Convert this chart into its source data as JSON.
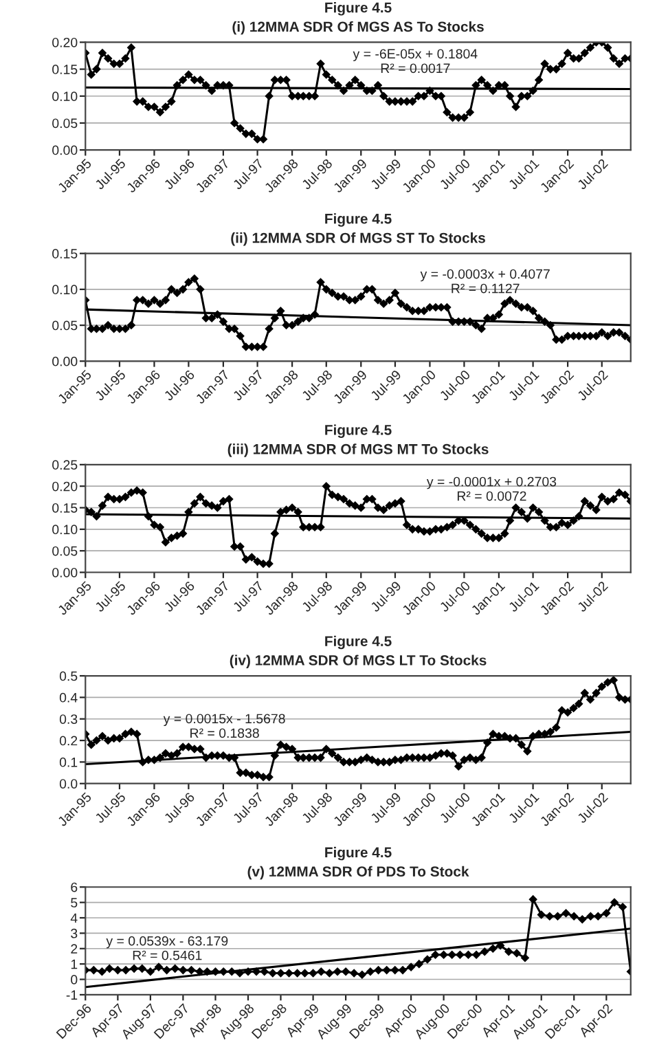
{
  "chart_data": [
    {
      "type": "line",
      "title": "Figure 4.5",
      "subtitle": "(i) 12MMA SDR Of MGS AS To Stocks",
      "marker": "diamond",
      "grid": "y",
      "x": [
        "1995-01",
        "1995-02",
        "1995-03",
        "1995-04",
        "1995-05",
        "1995-06",
        "1995-07",
        "1995-08",
        "1995-09",
        "1995-10",
        "1995-11",
        "1995-12",
        "1996-01",
        "1996-02",
        "1996-03",
        "1996-04",
        "1996-05",
        "1996-06",
        "1996-07",
        "1996-08",
        "1996-09",
        "1996-10",
        "1996-11",
        "1996-12",
        "1997-01",
        "1997-02",
        "1997-03",
        "1997-04",
        "1997-05",
        "1997-06",
        "1997-07",
        "1997-08",
        "1997-09",
        "1997-10",
        "1997-11",
        "1997-12",
        "1998-01",
        "1998-02",
        "1998-03",
        "1998-04",
        "1998-05",
        "1998-06",
        "1998-07",
        "1998-08",
        "1998-09",
        "1998-10",
        "1998-11",
        "1998-12",
        "1999-01",
        "1999-02",
        "1999-03",
        "1999-04",
        "1999-05",
        "1999-06",
        "1999-07",
        "1999-08",
        "1999-09",
        "1999-10",
        "1999-11",
        "1999-12",
        "2000-01",
        "2000-02",
        "2000-03",
        "2000-04",
        "2000-05",
        "2000-06",
        "2000-07",
        "2000-08",
        "2000-09",
        "2000-10",
        "2000-11",
        "2000-12",
        "2001-01",
        "2001-02",
        "2001-03",
        "2001-04",
        "2001-05",
        "2001-06",
        "2001-07",
        "2001-08",
        "2001-09",
        "2001-10",
        "2001-11",
        "2001-12",
        "2002-01",
        "2002-02",
        "2002-03",
        "2002-04",
        "2002-05",
        "2002-06",
        "2002-07",
        "2002-08",
        "2002-09",
        "2002-10",
        "2002-11",
        "2002-12"
      ],
      "series": [
        {
          "color": "#000000",
          "values": [
            0.18,
            0.14,
            0.15,
            0.18,
            0.17,
            0.16,
            0.16,
            0.17,
            0.19,
            0.09,
            0.09,
            0.08,
            0.08,
            0.07,
            0.08,
            0.09,
            0.12,
            0.13,
            0.14,
            0.13,
            0.13,
            0.12,
            0.11,
            0.12,
            0.12,
            0.12,
            0.05,
            0.04,
            0.03,
            0.03,
            0.02,
            0.02,
            0.1,
            0.13,
            0.13,
            0.13,
            0.1,
            0.1,
            0.1,
            0.1,
            0.1,
            0.16,
            0.14,
            0.13,
            0.12,
            0.11,
            0.12,
            0.13,
            0.12,
            0.11,
            0.11,
            0.12,
            0.1,
            0.09,
            0.09,
            0.09,
            0.09,
            0.09,
            0.1,
            0.1,
            0.11,
            0.1,
            0.1,
            0.07,
            0.06,
            0.06,
            0.06,
            0.07,
            0.12,
            0.13,
            0.12,
            0.11,
            0.12,
            0.12,
            0.1,
            0.08,
            0.1,
            0.1,
            0.11,
            0.13,
            0.16,
            0.15,
            0.15,
            0.16,
            0.18,
            0.17,
            0.17,
            0.18,
            0.19,
            0.2,
            0.2,
            0.19,
            0.17,
            0.16,
            0.17,
            0.17
          ]
        },
        {
          "type": "line",
          "marker": "none",
          "color": "#000000",
          "x": [
            "1995-01",
            "2002-12"
          ],
          "values": [
            0.116,
            0.113
          ]
        }
      ],
      "xlim": [
        "1995-01",
        "2002-12"
      ],
      "ylim": [
        0,
        0.2
      ],
      "xticks": [
        {
          "value": "1995-01",
          "label": "Jan-95"
        },
        {
          "value": "1995-07",
          "label": "Jul-95"
        },
        {
          "value": "1996-01",
          "label": "Jan-96"
        },
        {
          "value": "1996-07",
          "label": "Jul-96"
        },
        {
          "value": "1997-01",
          "label": "Jan-97"
        },
        {
          "value": "1997-07",
          "label": "Jul-97"
        },
        {
          "value": "1998-01",
          "label": "Jan-98"
        },
        {
          "value": "1998-07",
          "label": "Jul-98"
        },
        {
          "value": "1999-01",
          "label": "Jan-99"
        },
        {
          "value": "1999-07",
          "label": "Jul-99"
        },
        {
          "value": "2000-01",
          "label": "Jan-00"
        },
        {
          "value": "2000-07",
          "label": "Jul-00"
        },
        {
          "value": "2001-01",
          "label": "Jan-01"
        },
        {
          "value": "2001-07",
          "label": "Jul-01"
        },
        {
          "value": "2002-01",
          "label": "Jan-02"
        },
        {
          "value": "2002-07",
          "label": "Jul-02"
        }
      ],
      "yticks": [
        {
          "value": 0,
          "label": "0.00"
        },
        {
          "value": 0.05,
          "label": "0.05"
        },
        {
          "value": 0.1,
          "label": "0.10"
        },
        {
          "value": 0.15,
          "label": "0.15"
        },
        {
          "value": 0.2,
          "label": "0.20"
        }
      ],
      "annotations": [
        "y = -6E-05x + 0.1804",
        "R² = 0.0017"
      ]
    },
    {
      "type": "line",
      "title": "Figure 4.5",
      "subtitle": "(ii) 12MMA SDR Of MGS ST To Stocks",
      "marker": "diamond",
      "grid": "y",
      "x": [
        "1995-01",
        "1995-02",
        "1995-03",
        "1995-04",
        "1995-05",
        "1995-06",
        "1995-07",
        "1995-08",
        "1995-09",
        "1995-10",
        "1995-11",
        "1995-12",
        "1996-01",
        "1996-02",
        "1996-03",
        "1996-04",
        "1996-05",
        "1996-06",
        "1996-07",
        "1996-08",
        "1996-09",
        "1996-10",
        "1996-11",
        "1996-12",
        "1997-01",
        "1997-02",
        "1997-03",
        "1997-04",
        "1997-05",
        "1997-06",
        "1997-07",
        "1997-08",
        "1997-09",
        "1997-10",
        "1997-11",
        "1997-12",
        "1998-01",
        "1998-02",
        "1998-03",
        "1998-04",
        "1998-05",
        "1998-06",
        "1998-07",
        "1998-08",
        "1998-09",
        "1998-10",
        "1998-11",
        "1998-12",
        "1999-01",
        "1999-02",
        "1999-03",
        "1999-04",
        "1999-05",
        "1999-06",
        "1999-07",
        "1999-08",
        "1999-09",
        "1999-10",
        "1999-11",
        "1999-12",
        "2000-01",
        "2000-02",
        "2000-03",
        "2000-04",
        "2000-05",
        "2000-06",
        "2000-07",
        "2000-08",
        "2000-09",
        "2000-10",
        "2000-11",
        "2000-12",
        "2001-01",
        "2001-02",
        "2001-03",
        "2001-04",
        "2001-05",
        "2001-06",
        "2001-07",
        "2001-08",
        "2001-09",
        "2001-10",
        "2001-11",
        "2001-12",
        "2002-01",
        "2002-02",
        "2002-03",
        "2002-04",
        "2002-05",
        "2002-06",
        "2002-07",
        "2002-08",
        "2002-09",
        "2002-10",
        "2002-11",
        "2002-12"
      ],
      "series": [
        {
          "color": "#000000",
          "values": [
            0.085,
            0.045,
            0.045,
            0.045,
            0.05,
            0.045,
            0.045,
            0.045,
            0.05,
            0.085,
            0.085,
            0.08,
            0.085,
            0.08,
            0.085,
            0.1,
            0.095,
            0.1,
            0.11,
            0.115,
            0.1,
            0.06,
            0.06,
            0.065,
            0.055,
            0.045,
            0.045,
            0.035,
            0.02,
            0.02,
            0.02,
            0.02,
            0.045,
            0.06,
            0.07,
            0.05,
            0.05,
            0.055,
            0.06,
            0.06,
            0.065,
            0.11,
            0.1,
            0.095,
            0.09,
            0.09,
            0.085,
            0.085,
            0.09,
            0.1,
            0.1,
            0.085,
            0.08,
            0.085,
            0.095,
            0.08,
            0.075,
            0.07,
            0.07,
            0.07,
            0.075,
            0.075,
            0.075,
            0.075,
            0.055,
            0.055,
            0.055,
            0.055,
            0.05,
            0.045,
            0.06,
            0.06,
            0.065,
            0.08,
            0.085,
            0.08,
            0.075,
            0.075,
            0.07,
            0.06,
            0.055,
            0.05,
            0.03,
            0.03,
            0.035,
            0.035,
            0.035,
            0.035,
            0.035,
            0.035,
            0.04,
            0.035,
            0.04,
            0.04,
            0.035,
            0.03
          ]
        },
        {
          "type": "line",
          "marker": "none",
          "color": "#000000",
          "x": [
            "1995-01",
            "2002-12"
          ],
          "values": [
            0.072,
            0.05
          ]
        }
      ],
      "xlim": [
        "1995-01",
        "2002-12"
      ],
      "ylim": [
        0,
        0.15
      ],
      "xticks": [
        {
          "value": "1995-01",
          "label": "Jan-95"
        },
        {
          "value": "1995-07",
          "label": "Jul-95"
        },
        {
          "value": "1996-01",
          "label": "Jan-96"
        },
        {
          "value": "1996-07",
          "label": "Jul-96"
        },
        {
          "value": "1997-01",
          "label": "Jan-97"
        },
        {
          "value": "1997-07",
          "label": "Jul-97"
        },
        {
          "value": "1998-01",
          "label": "Jan-98"
        },
        {
          "value": "1998-07",
          "label": "Jul-98"
        },
        {
          "value": "1999-01",
          "label": "Jan-99"
        },
        {
          "value": "1999-07",
          "label": "Jul-99"
        },
        {
          "value": "2000-01",
          "label": "Jan-00"
        },
        {
          "value": "2000-07",
          "label": "Jul-00"
        },
        {
          "value": "2001-01",
          "label": "Jan-01"
        },
        {
          "value": "2001-07",
          "label": "Jul-01"
        },
        {
          "value": "2002-01",
          "label": "Jan-02"
        },
        {
          "value": "2002-07",
          "label": "Jul-02"
        }
      ],
      "yticks": [
        {
          "value": 0,
          "label": "0.00"
        },
        {
          "value": 0.05,
          "label": "0.05"
        },
        {
          "value": 0.1,
          "label": "0.10"
        },
        {
          "value": 0.15,
          "label": "0.15"
        }
      ],
      "annotations": [
        "y = -0.0003x + 0.4077",
        "R² = 0.1127"
      ]
    },
    {
      "type": "line",
      "title": "Figure 4.5",
      "subtitle": "(iii) 12MMA SDR Of MGS MT To Stocks",
      "marker": "diamond",
      "grid": "y",
      "x": [
        "1995-01",
        "1995-02",
        "1995-03",
        "1995-04",
        "1995-05",
        "1995-06",
        "1995-07",
        "1995-08",
        "1995-09",
        "1995-10",
        "1995-11",
        "1995-12",
        "1996-01",
        "1996-02",
        "1996-03",
        "1996-04",
        "1996-05",
        "1996-06",
        "1996-07",
        "1996-08",
        "1996-09",
        "1996-10",
        "1996-11",
        "1996-12",
        "1997-01",
        "1997-02",
        "1997-03",
        "1997-04",
        "1997-05",
        "1997-06",
        "1997-07",
        "1997-08",
        "1997-09",
        "1997-10",
        "1997-11",
        "1997-12",
        "1998-01",
        "1998-02",
        "1998-03",
        "1998-04",
        "1998-05",
        "1998-06",
        "1998-07",
        "1998-08",
        "1998-09",
        "1998-10",
        "1998-11",
        "1998-12",
        "1999-01",
        "1999-02",
        "1999-03",
        "1999-04",
        "1999-05",
        "1999-06",
        "1999-07",
        "1999-08",
        "1999-09",
        "1999-10",
        "1999-11",
        "1999-12",
        "2000-01",
        "2000-02",
        "2000-03",
        "2000-04",
        "2000-05",
        "2000-06",
        "2000-07",
        "2000-08",
        "2000-09",
        "2000-10",
        "2000-11",
        "2000-12",
        "2001-01",
        "2001-02",
        "2001-03",
        "2001-04",
        "2001-05",
        "2001-06",
        "2001-07",
        "2001-08",
        "2001-09",
        "2001-10",
        "2001-11",
        "2001-12",
        "2002-01",
        "2002-02",
        "2002-03",
        "2002-04",
        "2002-05",
        "2002-06",
        "2002-07",
        "2002-08",
        "2002-09",
        "2002-10",
        "2002-11",
        "2002-12"
      ],
      "series": [
        {
          "color": "#000000",
          "values": [
            0.145,
            0.14,
            0.13,
            0.155,
            0.175,
            0.17,
            0.17,
            0.175,
            0.185,
            0.19,
            0.185,
            0.13,
            0.11,
            0.105,
            0.07,
            0.08,
            0.085,
            0.09,
            0.14,
            0.16,
            0.175,
            0.16,
            0.155,
            0.15,
            0.165,
            0.17,
            0.06,
            0.06,
            0.03,
            0.035,
            0.025,
            0.02,
            0.02,
            0.09,
            0.14,
            0.145,
            0.15,
            0.14,
            0.105,
            0.105,
            0.105,
            0.105,
            0.2,
            0.18,
            0.175,
            0.17,
            0.16,
            0.155,
            0.15,
            0.17,
            0.17,
            0.15,
            0.145,
            0.155,
            0.16,
            0.165,
            0.11,
            0.1,
            0.1,
            0.095,
            0.095,
            0.1,
            0.1,
            0.105,
            0.11,
            0.12,
            0.12,
            0.11,
            0.1,
            0.09,
            0.08,
            0.08,
            0.08,
            0.09,
            0.12,
            0.15,
            0.14,
            0.125,
            0.15,
            0.14,
            0.12,
            0.105,
            0.105,
            0.115,
            0.11,
            0.12,
            0.13,
            0.165,
            0.155,
            0.145,
            0.175,
            0.165,
            0.17,
            0.185,
            0.18,
            0.165
          ]
        },
        {
          "type": "line",
          "marker": "none",
          "color": "#000000",
          "x": [
            "1995-01",
            "2002-12"
          ],
          "values": [
            0.135,
            0.125
          ]
        }
      ],
      "xlim": [
        "1995-01",
        "2002-12"
      ],
      "ylim": [
        0,
        0.25
      ],
      "xticks": [
        {
          "value": "1995-01",
          "label": "Jan-95"
        },
        {
          "value": "1995-07",
          "label": "Jul-95"
        },
        {
          "value": "1996-01",
          "label": "Jan-96"
        },
        {
          "value": "1996-07",
          "label": "Jul-96"
        },
        {
          "value": "1997-01",
          "label": "Jan-97"
        },
        {
          "value": "1997-07",
          "label": "Jul-97"
        },
        {
          "value": "1998-01",
          "label": "Jan-98"
        },
        {
          "value": "1998-07",
          "label": "Jul-98"
        },
        {
          "value": "1999-01",
          "label": "Jan-99"
        },
        {
          "value": "1999-07",
          "label": "Jul-99"
        },
        {
          "value": "2000-01",
          "label": "Jan-00"
        },
        {
          "value": "2000-07",
          "label": "Jul-00"
        },
        {
          "value": "2001-01",
          "label": "Jan-01"
        },
        {
          "value": "2001-07",
          "label": "Jul-01"
        },
        {
          "value": "2002-01",
          "label": "Jan-02"
        },
        {
          "value": "2002-07",
          "label": "Jul-02"
        }
      ],
      "yticks": [
        {
          "value": 0,
          "label": "0.00"
        },
        {
          "value": 0.05,
          "label": "0.05"
        },
        {
          "value": 0.1,
          "label": "0.10"
        },
        {
          "value": 0.15,
          "label": "0.15"
        },
        {
          "value": 0.2,
          "label": "0.20"
        },
        {
          "value": 0.25,
          "label": "0.25"
        }
      ],
      "annotations": [
        "y = -0.0001x + 0.2703",
        "R² = 0.0072"
      ]
    },
    {
      "type": "line",
      "title": "Figure 4.5",
      "subtitle": "(iv) 12MMA SDR Of MGS LT To Stocks",
      "marker": "diamond",
      "grid": "y",
      "x": [
        "1995-01",
        "1995-02",
        "1995-03",
        "1995-04",
        "1995-05",
        "1995-06",
        "1995-07",
        "1995-08",
        "1995-09",
        "1995-10",
        "1995-11",
        "1995-12",
        "1996-01",
        "1996-02",
        "1996-03",
        "1996-04",
        "1996-05",
        "1996-06",
        "1996-07",
        "1996-08",
        "1996-09",
        "1996-10",
        "1996-11",
        "1996-12",
        "1997-01",
        "1997-02",
        "1997-03",
        "1997-04",
        "1997-05",
        "1997-06",
        "1997-07",
        "1997-08",
        "1997-09",
        "1997-10",
        "1997-11",
        "1997-12",
        "1998-01",
        "1998-02",
        "1998-03",
        "1998-04",
        "1998-05",
        "1998-06",
        "1998-07",
        "1998-08",
        "1998-09",
        "1998-10",
        "1998-11",
        "1998-12",
        "1999-01",
        "1999-02",
        "1999-03",
        "1999-04",
        "1999-05",
        "1999-06",
        "1999-07",
        "1999-08",
        "1999-09",
        "1999-10",
        "1999-11",
        "1999-12",
        "2000-01",
        "2000-02",
        "2000-03",
        "2000-04",
        "2000-05",
        "2000-06",
        "2000-07",
        "2000-08",
        "2000-09",
        "2000-10",
        "2000-11",
        "2000-12",
        "2001-01",
        "2001-02",
        "2001-03",
        "2001-04",
        "2001-05",
        "2001-06",
        "2001-07",
        "2001-08",
        "2001-09",
        "2001-10",
        "2001-11",
        "2001-12",
        "2002-01",
        "2002-02",
        "2002-03",
        "2002-04",
        "2002-05",
        "2002-06",
        "2002-07",
        "2002-08",
        "2002-09",
        "2002-10",
        "2002-11",
        "2002-12"
      ],
      "series": [
        {
          "color": "#000000",
          "values": [
            0.23,
            0.18,
            0.2,
            0.22,
            0.2,
            0.21,
            0.21,
            0.23,
            0.24,
            0.23,
            0.1,
            0.11,
            0.11,
            0.12,
            0.14,
            0.13,
            0.14,
            0.17,
            0.17,
            0.16,
            0.16,
            0.12,
            0.13,
            0.13,
            0.13,
            0.12,
            0.12,
            0.05,
            0.05,
            0.04,
            0.04,
            0.03,
            0.03,
            0.13,
            0.18,
            0.17,
            0.16,
            0.12,
            0.12,
            0.12,
            0.12,
            0.12,
            0.16,
            0.14,
            0.12,
            0.1,
            0.1,
            0.1,
            0.11,
            0.12,
            0.11,
            0.1,
            0.1,
            0.1,
            0.11,
            0.11,
            0.12,
            0.12,
            0.12,
            0.12,
            0.12,
            0.13,
            0.14,
            0.14,
            0.13,
            0.08,
            0.11,
            0.12,
            0.11,
            0.12,
            0.19,
            0.23,
            0.22,
            0.22,
            0.21,
            0.21,
            0.18,
            0.15,
            0.22,
            0.23,
            0.23,
            0.24,
            0.26,
            0.34,
            0.33,
            0.35,
            0.37,
            0.42,
            0.39,
            0.42,
            0.45,
            0.47,
            0.48,
            0.4,
            0.39,
            0.39
          ]
        },
        {
          "type": "line",
          "marker": "none",
          "color": "#000000",
          "x": [
            "1995-01",
            "2002-12"
          ],
          "values": [
            0.09,
            0.24
          ]
        }
      ],
      "xlim": [
        "1995-01",
        "2002-12"
      ],
      "ylim": [
        0,
        0.5
      ],
      "xticks": [
        {
          "value": "1995-01",
          "label": "Jan-95"
        },
        {
          "value": "1995-07",
          "label": "Jul-95"
        },
        {
          "value": "1996-01",
          "label": "Jan-96"
        },
        {
          "value": "1996-07",
          "label": "Jul-96"
        },
        {
          "value": "1997-01",
          "label": "Jan-97"
        },
        {
          "value": "1997-07",
          "label": "Jul-97"
        },
        {
          "value": "1998-01",
          "label": "Jan-98"
        },
        {
          "value": "1998-07",
          "label": "Jul-98"
        },
        {
          "value": "1999-01",
          "label": "Jan-99"
        },
        {
          "value": "1999-07",
          "label": "Jul-99"
        },
        {
          "value": "2000-01",
          "label": "Jan-00"
        },
        {
          "value": "2000-07",
          "label": "Jul-00"
        },
        {
          "value": "2001-01",
          "label": "Jan-01"
        },
        {
          "value": "2001-07",
          "label": "Jul-01"
        },
        {
          "value": "2002-01",
          "label": "Jan-02"
        },
        {
          "value": "2002-07",
          "label": "Jul-02"
        }
      ],
      "yticks": [
        {
          "value": 0,
          "label": "0.0"
        },
        {
          "value": 0.1,
          "label": "0.1"
        },
        {
          "value": 0.2,
          "label": "0.2"
        },
        {
          "value": 0.3,
          "label": "0.3"
        },
        {
          "value": 0.4,
          "label": "0.4"
        },
        {
          "value": 0.5,
          "label": "0.5"
        }
      ],
      "annotations": [
        "y = 0.0015x - 1.5678",
        "R² = 0.1838"
      ]
    },
    {
      "type": "line",
      "title": "Figure 4.5",
      "subtitle": "(v) 12MMA SDR Of PDS To Stock",
      "marker": "diamond",
      "grid": "y",
      "x": [
        "1996-12",
        "1997-01",
        "1997-02",
        "1997-03",
        "1997-04",
        "1997-05",
        "1997-06",
        "1997-07",
        "1997-08",
        "1997-09",
        "1997-10",
        "1997-11",
        "1997-12",
        "1998-01",
        "1998-02",
        "1998-03",
        "1998-04",
        "1998-05",
        "1998-06",
        "1998-07",
        "1998-08",
        "1998-09",
        "1998-10",
        "1998-11",
        "1998-12",
        "1999-01",
        "1999-02",
        "1999-03",
        "1999-04",
        "1999-05",
        "1999-06",
        "1999-07",
        "1999-08",
        "1999-09",
        "1999-10",
        "1999-11",
        "1999-12",
        "2000-01",
        "2000-02",
        "2000-03",
        "2000-04",
        "2000-05",
        "2000-06",
        "2000-07",
        "2000-08",
        "2000-09",
        "2000-10",
        "2000-11",
        "2000-12",
        "2001-01",
        "2001-02",
        "2001-03",
        "2001-04",
        "2001-05",
        "2001-06",
        "2001-07",
        "2001-08",
        "2001-09",
        "2001-10",
        "2001-11",
        "2001-12",
        "2002-01",
        "2002-02",
        "2002-03",
        "2002-04",
        "2002-05",
        "2002-06",
        "2002-07"
      ],
      "series": [
        {
          "color": "#000000",
          "values": [
            0.6,
            0.6,
            0.5,
            0.7,
            0.6,
            0.6,
            0.7,
            0.7,
            0.5,
            0.8,
            0.6,
            0.7,
            0.6,
            0.6,
            0.5,
            0.5,
            0.5,
            0.5,
            0.5,
            0.4,
            0.5,
            0.5,
            0.5,
            0.4,
            0.4,
            0.4,
            0.4,
            0.4,
            0.4,
            0.5,
            0.4,
            0.5,
            0.5,
            0.4,
            0.3,
            0.5,
            0.6,
            0.6,
            0.6,
            0.6,
            0.8,
            1.0,
            1.3,
            1.6,
            1.6,
            1.6,
            1.6,
            1.6,
            1.6,
            1.8,
            2.0,
            2.2,
            1.8,
            1.7,
            1.4,
            5.2,
            4.2,
            4.1,
            4.1,
            4.3,
            4.1,
            3.9,
            4.1,
            4.1,
            4.3,
            5.0,
            4.7,
            0.5
          ]
        },
        {
          "type": "line",
          "marker": "none",
          "color": "#000000",
          "x": [
            "1996-12",
            "2002-07"
          ],
          "values": [
            -0.5,
            3.3
          ]
        }
      ],
      "xlim": [
        "1996-12",
        "2002-07"
      ],
      "ylim": [
        -1,
        6
      ],
      "xticks": [
        {
          "value": "1996-12",
          "label": "Dec-96"
        },
        {
          "value": "1997-04",
          "label": "Apr-97"
        },
        {
          "value": "1997-08",
          "label": "Aug-97"
        },
        {
          "value": "1997-12",
          "label": "Dec-97"
        },
        {
          "value": "1998-04",
          "label": "Apr-98"
        },
        {
          "value": "1998-08",
          "label": "Aug-98"
        },
        {
          "value": "1998-12",
          "label": "Dec-98"
        },
        {
          "value": "1999-04",
          "label": "Apr-99"
        },
        {
          "value": "1999-08",
          "label": "Aug-99"
        },
        {
          "value": "1999-12",
          "label": "Dec-99"
        },
        {
          "value": "2000-04",
          "label": "Apr-00"
        },
        {
          "value": "2000-08",
          "label": "Aug-00"
        },
        {
          "value": "2000-12",
          "label": "Dec-00"
        },
        {
          "value": "2001-04",
          "label": "Apr-01"
        },
        {
          "value": "2001-08",
          "label": "Aug-01"
        },
        {
          "value": "2001-12",
          "label": "Dec-01"
        },
        {
          "value": "2002-04",
          "label": "Apr-02"
        }
      ],
      "yticks": [
        -1,
        0,
        1,
        2,
        3,
        4,
        5,
        6
      ],
      "annotations": [
        "y = 0.0539x - 63.179",
        "R² = 0.5461"
      ]
    }
  ]
}
